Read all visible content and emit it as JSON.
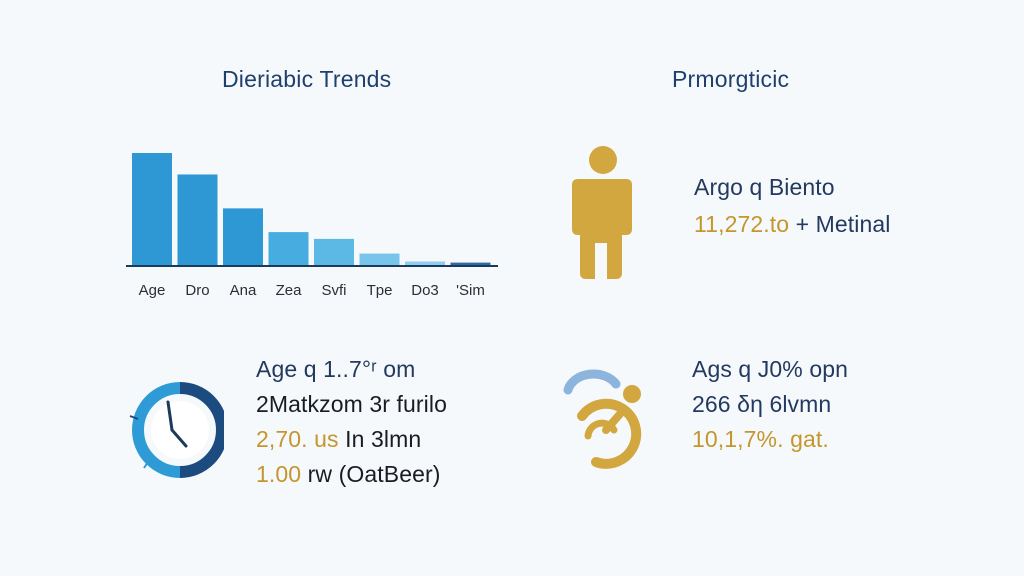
{
  "left_panel": {
    "title": "Dieriabic Trends"
  },
  "right_panel": {
    "title": "Prmorgticic",
    "person_block": {
      "line1": "Argo q Biento",
      "line2_value": "11,272.to",
      "line2_rest": " + Metinal"
    },
    "mobility_block": {
      "line1": "Ags q J0% opn",
      "line2": "266 δη 6lvmn",
      "line3": "10,1,7%. gat."
    }
  },
  "clock_block": {
    "line1": "Age q 1..7°ʳ om",
    "line2": "2Matkzom 3r furilo",
    "line3_value": "2,70. us",
    "line3_rest": " In 3lmn",
    "line4_value": "1.00",
    "line4_rest": " rw (OatBeer)"
  },
  "colors": {
    "title": "#1f3f6e",
    "navy_text": "#23395f",
    "gold_accent": "#c4962d",
    "blue_dark": "#1c4b7f",
    "blue_mid": "#2e9bd6",
    "baseline": "#1c3a5e"
  },
  "icons": {
    "person": "person-icon",
    "clock": "clock-icon",
    "mobility": "wheelchair-icon"
  },
  "chart_data": {
    "type": "bar",
    "categories": [
      "Age",
      "Dro",
      "Ana",
      "Zea",
      "Svfi",
      "Tpe",
      "Do3",
      "'Sim"
    ],
    "values": [
      100,
      81,
      51,
      30,
      24,
      11,
      4,
      3
    ],
    "bar_colors": [
      "#2d98d3",
      "#2d98d3",
      "#2d98d3",
      "#47ade0",
      "#5cb9e6",
      "#78c5eb",
      "#8fcdee",
      "#2c6aa3"
    ],
    "ylim": [
      0,
      100
    ],
    "title": "",
    "xlabel": "",
    "ylabel": "",
    "grid": false,
    "legend": "none"
  }
}
